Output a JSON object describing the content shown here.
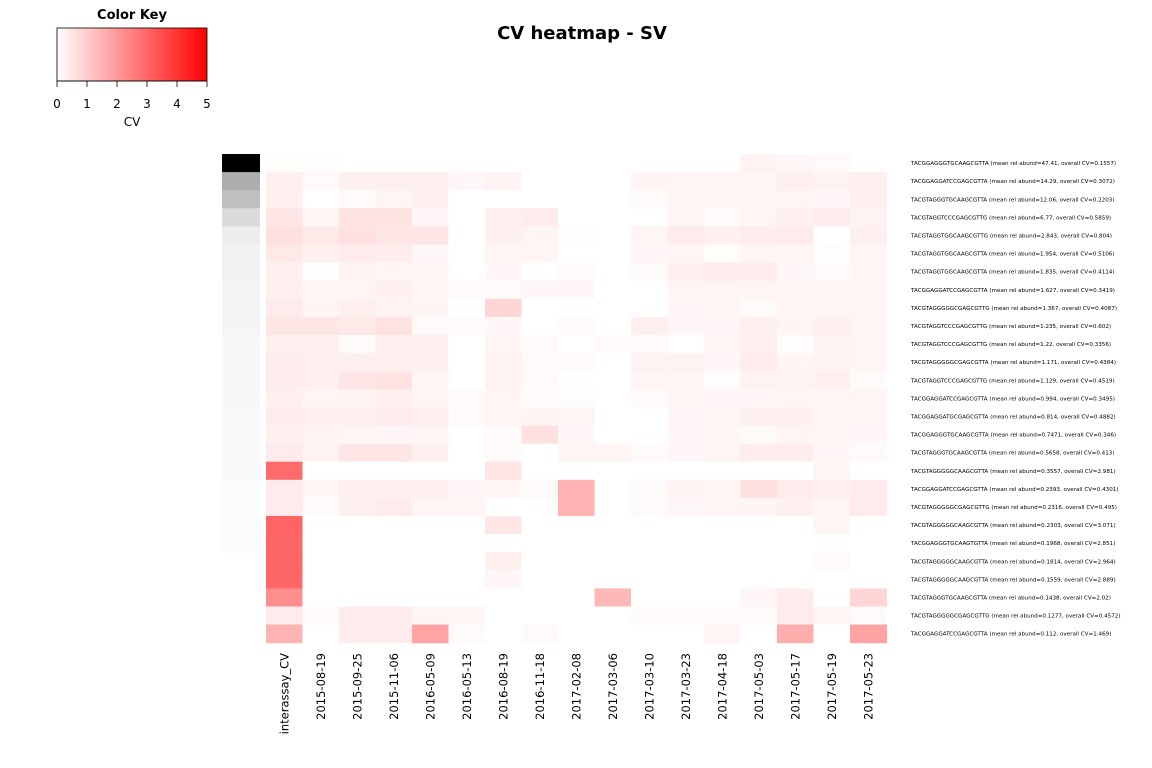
{
  "chart_data": {
    "type": "heatmap",
    "title": "CV heatmap - SV",
    "color_key": {
      "title": "Color Key",
      "xlabel": "CV",
      "range": [
        0,
        5
      ],
      "ticks": [
        "0",
        "1",
        "2",
        "3",
        "4",
        "5"
      ],
      "low_color": "#ffffff",
      "high_color": "#ff0000"
    },
    "columns": [
      "interassay_CV",
      "2015-08-19",
      "2015-09-25",
      "2015-11-06",
      "2016-05-09",
      "2016-05-13",
      "2016-08-19",
      "2016-11-18",
      "2017-02-08",
      "2017-03-06",
      "2017-03-10",
      "2017-03-23",
      "2017-04-18",
      "2017-05-03",
      "2017-05-17",
      "2017-05-19",
      "2017-05-23"
    ],
    "rows": [
      "TACGGAGGGTGCAAGCGTTA (mean rel abund=47.41, overall CV=0.1557)",
      "TACGGAGGATCCGAGCGTTA (mean rel abund=14.29, overall CV=0.3072)",
      "TACGTAGGGTGCAAGCGTTA (mean rel abund=12.06, overall CV=0.2203)",
      "TACGTAGGTCCCGAGCGTTG (mean rel abund=6.77, overall CV=0.5859)",
      "TACGTAGGTGGCAAGCGTTG (mean rel abund=2.843, overall CV=0.804)",
      "TACGTAGGTGGCAAGCGTTA (mean rel abund=1.954, overall CV=0.5106)",
      "TACGTAGGTGGCAAGCGTTA (mean rel abund=1.835, overall CV=0.4114)",
      "TACGGAGGATCCGAGCGTTA (mean rel abund=1.627, overall CV=0.3419)",
      "TACGTAGGGGGCGAGCGTTG (mean rel abund=1.367, overall CV=0.4087)",
      "TACGTAGGTCCCGAGCGTTG (mean rel abund=1.235, overall CV=0.602)",
      "TACGTAGGTCCCGAGCGTTG (mean rel abund=1.22, overall CV=0.3356)",
      "TACGTAGGGGGCGAGCGTTA (mean rel abund=1.171, overall CV=0.4384)",
      "TACGTAGGTCCCGAGCGTTG (mean rel abund=1.129, overall CV=0.4519)",
      "TACGGAGGATCCGAGCGTTA (mean rel abund=0.994, overall CV=0.3495)",
      "TACGGAGGATGCGAGCGTTA (mean rel abund=0.814, overall CV=0.4882)",
      "TACGGAGGGTGCAAGCGTTA (mean rel abund=0.7471, overall CV=0.346)",
      "TACGTAGGGTGCAAGCGTTA (mean rel abund=0.5658, overall CV=0.413)",
      "TACGTAGGGGGCAAGCGTTA (mean rel abund=0.3557, overall CV=2.981)",
      "TACGGAGGATCCGAGCGTTA (mean rel abund=0.2393, overall CV=0.4301)",
      "TACGTAGGGGGCGAGCGTTG (mean rel abund=0.2316, overall CV=0.495)",
      "TACGTAGGGGGCAAGCGTTA (mean rel abund=0.2303, overall CV=3.071)",
      "TACGGAGGGTGCAAGTGTTA (mean rel abund=0.1968, overall CV=2.851)",
      "TACGTAGGGGGCAAGCGTTA (mean rel abund=0.1814, overall CV=2.964)",
      "TACGTAGGGGGCAAGCGTTA (mean rel abund=0.1559, overall CV=2.889)",
      "TACGTAGGGTGCAAGCGTTA (mean rel abund=0.1438, overall CV=2.02)",
      "TACGTAGGGGGCGAGCGTTG (mean rel abund=0.1277, overall CV=0.4572)",
      "TACGGAGGATCCGAGCGTTA (mean rel abund=0.112, overall CV=1.469)"
    ],
    "row_side_grays": [
      0.0,
      0.68,
      0.75,
      0.86,
      0.93,
      0.95,
      0.95,
      0.96,
      0.96,
      0.96,
      0.97,
      0.97,
      0.97,
      0.97,
      0.98,
      0.98,
      0.98,
      0.98,
      0.99,
      0.99,
      0.99,
      0.99,
      1.0,
      1.0,
      1.0,
      1.0,
      1.0
    ],
    "values": [
      [
        0.05,
        0.05,
        0.0,
        0.0,
        0.0,
        0.0,
        0.0,
        0.0,
        0.0,
        0.0,
        0.0,
        0.0,
        0.0,
        0.25,
        0.15,
        0.1,
        0.0
      ],
      [
        0.3,
        0.1,
        0.3,
        0.3,
        0.3,
        0.15,
        0.25,
        0.0,
        0.0,
        0.0,
        0.2,
        0.2,
        0.2,
        0.2,
        0.3,
        0.25,
        0.3
      ],
      [
        0.3,
        0.0,
        0.1,
        0.2,
        0.3,
        0.0,
        0.0,
        0.0,
        0.0,
        0.0,
        0.1,
        0.2,
        0.2,
        0.2,
        0.2,
        0.15,
        0.3
      ],
      [
        0.5,
        0.2,
        0.55,
        0.55,
        0.15,
        0.0,
        0.3,
        0.4,
        0.0,
        0.0,
        0.0,
        0.2,
        0.1,
        0.2,
        0.3,
        0.4,
        0.25
      ],
      [
        0.6,
        0.45,
        0.6,
        0.5,
        0.5,
        0.0,
        0.3,
        0.2,
        0.05,
        0.0,
        0.2,
        0.4,
        0.3,
        0.35,
        0.4,
        0.0,
        0.3
      ],
      [
        0.45,
        0.3,
        0.4,
        0.35,
        0.15,
        0.0,
        0.2,
        0.2,
        0.0,
        0.0,
        0.15,
        0.2,
        0.05,
        0.2,
        0.2,
        0.05,
        0.2
      ],
      [
        0.3,
        0.0,
        0.25,
        0.2,
        0.2,
        0.0,
        0.15,
        0.0,
        0.1,
        0.0,
        0.1,
        0.3,
        0.35,
        0.4,
        0.15,
        0.1,
        0.2
      ],
      [
        0.3,
        0.2,
        0.2,
        0.3,
        0.2,
        0.1,
        0.1,
        0.15,
        0.15,
        0.0,
        0.0,
        0.2,
        0.2,
        0.2,
        0.2,
        0.2,
        0.2
      ],
      [
        0.4,
        0.2,
        0.3,
        0.25,
        0.2,
        0.0,
        0.8,
        0.0,
        0.0,
        0.0,
        0.0,
        0.15,
        0.2,
        0.1,
        0.2,
        0.15,
        0.2
      ],
      [
        0.5,
        0.5,
        0.45,
        0.55,
        0.1,
        0.1,
        0.15,
        0.0,
        0.1,
        0.0,
        0.3,
        0.15,
        0.15,
        0.3,
        0.2,
        0.3,
        0.2
      ],
      [
        0.3,
        0.3,
        0.1,
        0.3,
        0.3,
        0.0,
        0.2,
        0.1,
        0.0,
        0.1,
        0.1,
        0.0,
        0.2,
        0.3,
        0.05,
        0.25,
        0.2
      ],
      [
        0.35,
        0.3,
        0.3,
        0.3,
        0.3,
        0.0,
        0.25,
        0.1,
        0.1,
        0.0,
        0.25,
        0.25,
        0.15,
        0.4,
        0.2,
        0.25,
        0.2
      ],
      [
        0.35,
        0.3,
        0.5,
        0.55,
        0.2,
        0.0,
        0.25,
        0.1,
        0.0,
        0.0,
        0.2,
        0.2,
        0.05,
        0.25,
        0.25,
        0.3,
        0.1
      ],
      [
        0.3,
        0.2,
        0.25,
        0.3,
        0.2,
        0.1,
        0.2,
        0.1,
        0.05,
        0.0,
        0.1,
        0.2,
        0.15,
        0.15,
        0.2,
        0.2,
        0.2
      ],
      [
        0.4,
        0.3,
        0.3,
        0.4,
        0.3,
        0.1,
        0.2,
        0.2,
        0.2,
        0.0,
        0.0,
        0.15,
        0.2,
        0.3,
        0.3,
        0.2,
        0.2
      ],
      [
        0.3,
        0.25,
        0.2,
        0.15,
        0.2,
        0.0,
        0.1,
        0.6,
        0.15,
        0.0,
        0.0,
        0.15,
        0.2,
        0.1,
        0.2,
        0.2,
        0.15
      ],
      [
        0.4,
        0.25,
        0.5,
        0.5,
        0.3,
        0.0,
        0.1,
        0.0,
        0.2,
        0.2,
        0.1,
        0.15,
        0.2,
        0.35,
        0.35,
        0.15,
        0.1
      ],
      [
        2.9,
        0.0,
        0.0,
        0.0,
        0.0,
        0.0,
        0.5,
        0.0,
        0.0,
        0.0,
        0.0,
        0.0,
        0.0,
        0.0,
        0.0,
        0.2,
        0.0
      ],
      [
        0.4,
        0.2,
        0.3,
        0.3,
        0.3,
        0.15,
        0.2,
        0.1,
        1.5,
        0.0,
        0.1,
        0.25,
        0.2,
        0.6,
        0.4,
        0.3,
        0.4
      ],
      [
        0.4,
        0.1,
        0.3,
        0.4,
        0.2,
        0.2,
        0.0,
        0.0,
        1.5,
        0.0,
        0.1,
        0.15,
        0.2,
        0.2,
        0.3,
        0.2,
        0.4
      ],
      [
        3.05,
        0.0,
        0.0,
        0.0,
        0.0,
        0.0,
        0.5,
        0.0,
        0.0,
        0.0,
        0.0,
        0.0,
        0.0,
        0.0,
        0.0,
        0.2,
        0.0
      ],
      [
        3.0,
        0.0,
        0.0,
        0.0,
        0.0,
        0.0,
        0.0,
        0.0,
        0.0,
        0.0,
        0.0,
        0.0,
        0.0,
        0.0,
        0.0,
        0.0,
        0.0
      ],
      [
        3.0,
        0.0,
        0.0,
        0.0,
        0.0,
        0.0,
        0.3,
        0.0,
        0.0,
        0.0,
        0.0,
        0.0,
        0.0,
        0.0,
        0.0,
        0.1,
        0.0
      ],
      [
        3.0,
        0.0,
        0.0,
        0.0,
        0.0,
        0.0,
        0.15,
        0.0,
        0.0,
        0.0,
        0.0,
        0.0,
        0.0,
        0.0,
        0.0,
        0.0,
        0.0
      ],
      [
        2.2,
        0.0,
        0.0,
        0.0,
        0.0,
        0.0,
        0.0,
        0.0,
        0.0,
        1.4,
        0.0,
        0.0,
        0.0,
        0.15,
        0.4,
        0.0,
        0.8
      ],
      [
        0.4,
        0.1,
        0.4,
        0.4,
        0.2,
        0.2,
        0.0,
        0.0,
        0.0,
        0.0,
        0.1,
        0.1,
        0.1,
        0.1,
        0.4,
        0.2,
        0.1
      ],
      [
        1.5,
        0.0,
        0.4,
        0.4,
        1.8,
        0.1,
        0.0,
        0.1,
        0.0,
        0.0,
        0.0,
        0.0,
        0.2,
        0.0,
        1.6,
        0.0,
        1.8
      ]
    ]
  }
}
